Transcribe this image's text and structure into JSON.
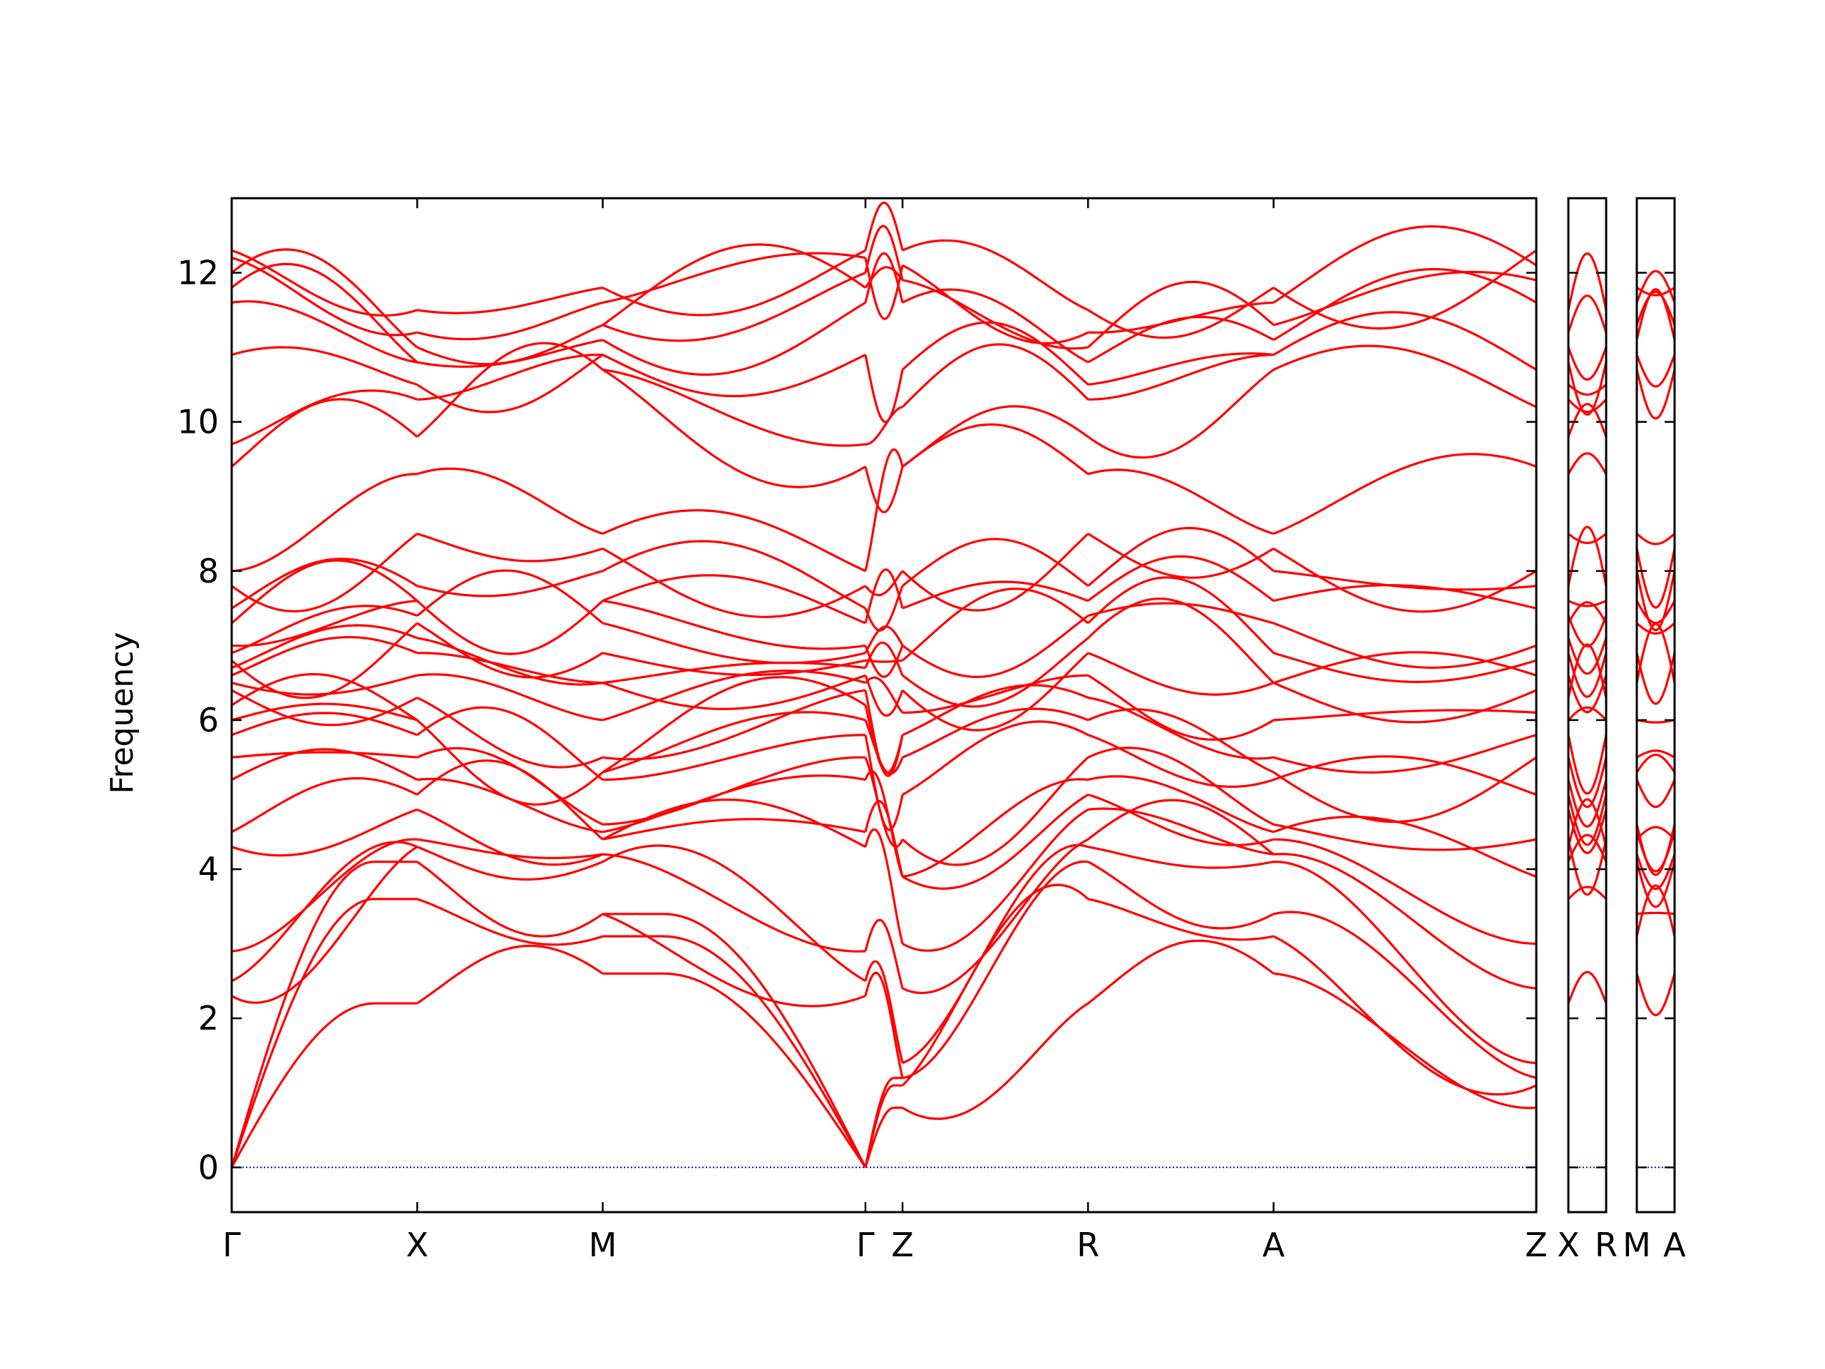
{
  "chart_data": {
    "type": "line",
    "title": "",
    "xlabel": "",
    "ylabel": "Frequency",
    "ylim": [
      -0.6,
      13.0
    ],
    "yticks": [
      0,
      2,
      4,
      6,
      8,
      10,
      12
    ],
    "grid": false,
    "legend": "none",
    "band_color": "#ff0000",
    "zero_line_color": "#0000ff",
    "panels": [
      {
        "segments": [
          {
            "from": "Γ",
            "to": "X",
            "length": 0.25
          },
          {
            "from": "X",
            "to": "M",
            "length": 0.25
          },
          {
            "from": "M",
            "to": "Γ",
            "length": 0.354
          },
          {
            "from": "Γ",
            "to": "Z",
            "length": 0.05
          },
          {
            "from": "Z",
            "to": "R",
            "length": 0.25
          },
          {
            "from": "R",
            "to": "A",
            "length": 0.25
          },
          {
            "from": "A",
            "to": "Z",
            "length": 0.354
          }
        ],
        "tick_labels": [
          "Γ",
          "X",
          "M",
          "Γ",
          "Z",
          "R",
          "A",
          "Z"
        ]
      },
      {
        "segments": [
          {
            "from": "X",
            "to": "R",
            "length": 0.05
          }
        ],
        "tick_labels": [
          "X",
          "R"
        ]
      },
      {
        "segments": [
          {
            "from": "M",
            "to": "A",
            "length": 0.05
          }
        ],
        "tick_labels": [
          "M",
          "A"
        ]
      }
    ],
    "frequencies_at_points": {
      "Γ": [
        0,
        0,
        0,
        2.3,
        2.5,
        2.9,
        4.3,
        4.5,
        5.2,
        5.5,
        5.8,
        6.0,
        6.2,
        6.4,
        6.5,
        6.6,
        6.7,
        6.8,
        6.9,
        7.0,
        7.3,
        7.5,
        7.8,
        8.0,
        9.4,
        9.7,
        10.9,
        11.6,
        11.8,
        12.0,
        12.2,
        12.3
      ],
      "X": [
        2.2,
        3.6,
        4.1,
        4.3,
        4.4,
        4.8,
        5.0,
        5.2,
        5.5,
        5.8,
        6.0,
        6.3,
        6.6,
        6.9,
        7.1,
        7.3,
        7.4,
        7.6,
        7.8,
        8.5,
        9.3,
        9.8,
        10.3,
        10.5,
        10.8,
        11.0,
        11.2,
        11.5
      ],
      "M": [
        2.6,
        3.1,
        3.4,
        4.1,
        4.2,
        4.4,
        4.5,
        4.6,
        5.2,
        5.3,
        5.5,
        6.0,
        6.5,
        6.9,
        7.3,
        7.6,
        8.0,
        8.3,
        8.5,
        10.7,
        10.9,
        11.1,
        11.3,
        11.6,
        11.8
      ],
      "Z": [
        0.8,
        1.1,
        1.2,
        1.4,
        2.4,
        3.0,
        3.9,
        4.4,
        5.0,
        5.5,
        5.8,
        6.1,
        6.4,
        6.6,
        6.8,
        7.0,
        7.5,
        7.8,
        8.0,
        9.4,
        10.2,
        10.7,
        11.6,
        11.9,
        12.1,
        12.3
      ],
      "R": [
        2.2,
        3.6,
        4.1,
        4.3,
        4.4,
        4.8,
        5.0,
        5.2,
        5.5,
        5.8,
        6.0,
        6.3,
        6.6,
        6.9,
        7.1,
        7.3,
        7.4,
        7.6,
        7.8,
        8.5,
        9.3,
        9.8,
        10.3,
        10.5,
        10.8,
        11.0,
        11.2,
        11.5
      ],
      "A": [
        2.6,
        3.1,
        3.4,
        4.1,
        4.2,
        4.4,
        4.5,
        4.6,
        5.2,
        5.3,
        5.5,
        6.0,
        6.5,
        6.9,
        7.3,
        7.6,
        8.0,
        8.3,
        8.5,
        10.7,
        10.9,
        11.1,
        11.3,
        11.6,
        11.8
      ]
    }
  }
}
